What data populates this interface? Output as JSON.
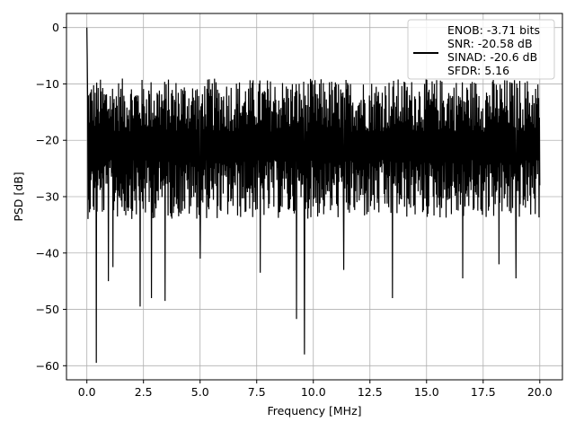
{
  "chart_data": {
    "type": "line",
    "title": "",
    "xlabel": "Frequency [MHz]",
    "ylabel": "PSD [dB]",
    "xlim": [
      -0.9,
      21.0
    ],
    "ylim": [
      -62.5,
      2.5
    ],
    "xticks": [
      0.0,
      2.5,
      5.0,
      7.5,
      10.0,
      12.5,
      15.0,
      17.5,
      20.0
    ],
    "xtick_labels": [
      "0.0",
      "2.5",
      "5.0",
      "7.5",
      "10.0",
      "12.5",
      "15.0",
      "17.5",
      "20.0"
    ],
    "yticks": [
      0,
      -10,
      -20,
      -30,
      -40,
      -50,
      -60
    ],
    "ytick_labels": [
      "0",
      "−10",
      "−20",
      "−30",
      "−40",
      "−50",
      "−60"
    ],
    "grid": true,
    "line_color": "#000000",
    "legend": {
      "placement": "top-right",
      "lines": [
        "ENOB: -3.71 bits",
        "SNR: -20.58 dB",
        "SINAD: -20.6 dB",
        "SFDR: 5.16"
      ]
    },
    "series": [
      {
        "noise_model": {
          "x_start": 0.0,
          "x_end": 20.0,
          "points": 1200,
          "center_db": -20.5,
          "upper_db": -9.0,
          "lower_typical_db": -34.0
        },
        "peaks": [
          {
            "x": 0.0,
            "y": 0.0
          },
          {
            "x": 0.02,
            "y": -5.5
          }
        ],
        "dips": [
          {
            "x": 0.42,
            "y": -59.5
          },
          {
            "x": 0.95,
            "y": -45.0
          },
          {
            "x": 1.15,
            "y": -42.5
          },
          {
            "x": 2.35,
            "y": -49.5
          },
          {
            "x": 2.85,
            "y": -48.0
          },
          {
            "x": 3.45,
            "y": -48.5
          },
          {
            "x": 5.0,
            "y": -41.0
          },
          {
            "x": 7.65,
            "y": -43.5
          },
          {
            "x": 9.25,
            "y": -51.7
          },
          {
            "x": 9.6,
            "y": -58.0
          },
          {
            "x": 11.35,
            "y": -43.0
          },
          {
            "x": 13.5,
            "y": -48.0
          },
          {
            "x": 16.6,
            "y": -44.5
          },
          {
            "x": 18.2,
            "y": -42.0
          },
          {
            "x": 18.95,
            "y": -44.5
          }
        ]
      }
    ]
  }
}
